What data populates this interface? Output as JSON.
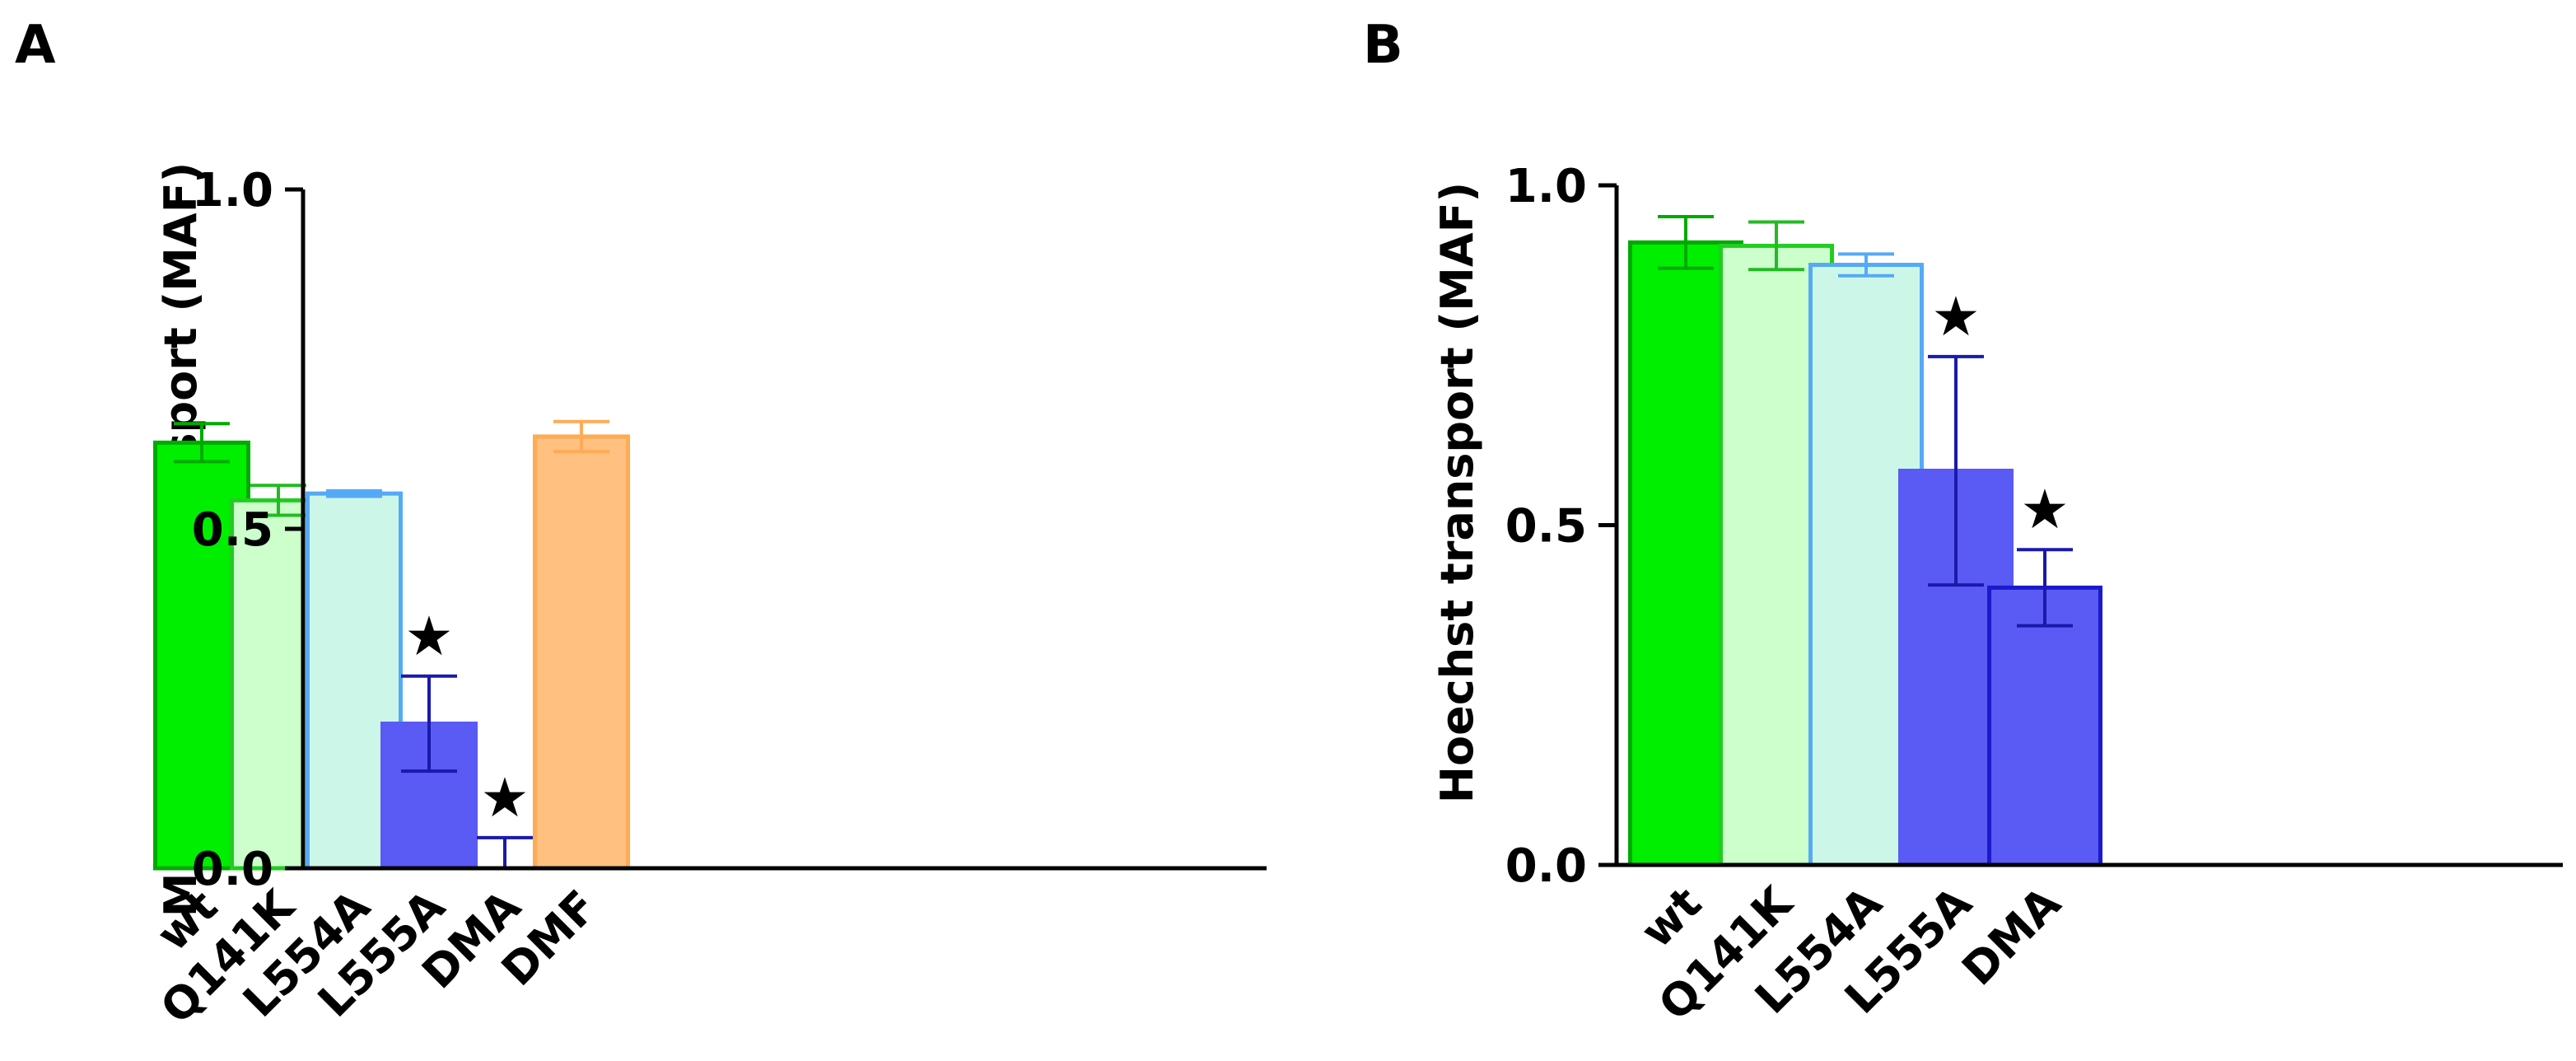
{
  "chart_data": [
    {
      "type": "bar",
      "panel_label": "A",
      "title": "",
      "xlabel": "",
      "ylabel": "Mitoxantrone transport (MAF)",
      "ylim": [
        0,
        1.0
      ],
      "yticks": [
        "0.0",
        "0.5",
        "1.0"
      ],
      "categories": [
        "wt",
        "Q141K",
        "L554A",
        "L555A",
        "DMA",
        "DMF"
      ],
      "values": [
        0.627,
        0.542,
        0.552,
        0.213,
        0.0,
        0.636
      ],
      "errors": [
        0.028,
        0.022,
        0.004,
        0.07,
        0.045,
        0.022
      ],
      "significance": [
        "",
        "",
        "",
        "★",
        "★",
        ""
      ],
      "fills": [
        "#00ee00",
        "#ccffcc",
        "#ccf7e8",
        "#5a5af5",
        "#5a5af5",
        "#ffc080"
      ],
      "strokes": [
        "#00aa00",
        "#22cc22",
        "#55aaf5",
        "#5a5af5",
        "#1a1acc",
        "#ffaa55"
      ],
      "error_colors": [
        "#00aa00",
        "#22bb22",
        "#55aaf5",
        "#1a1aaa",
        "#1a1aaa",
        "#ffaa55"
      ]
    },
    {
      "type": "bar",
      "panel_label": "B",
      "title": "",
      "xlabel": "",
      "ylabel": "Hoechst transport (MAF)",
      "ylim": [
        0,
        1.0
      ],
      "yticks": [
        "0.0",
        "0.5",
        "1.0"
      ],
      "categories": [
        "wt",
        "Q141K",
        "L554A",
        "L555A",
        "DMA"
      ],
      "values": [
        0.916,
        0.911,
        0.883,
        0.58,
        0.408
      ],
      "errors": [
        0.038,
        0.035,
        0.016,
        0.168,
        0.056
      ],
      "significance": [
        "",
        "",
        "",
        "★",
        "★"
      ],
      "fills": [
        "#00ee00",
        "#ccffcc",
        "#ccf7e8",
        "#5a5af5",
        "#5a5af5"
      ],
      "strokes": [
        "#00aa00",
        "#22cc22",
        "#55aaf5",
        "#5a5af5",
        "#1a1acc"
      ],
      "error_colors": [
        "#00aa00",
        "#22bb22",
        "#55aaf5",
        "#1a1aaa",
        "#1a1aaa"
      ]
    }
  ]
}
